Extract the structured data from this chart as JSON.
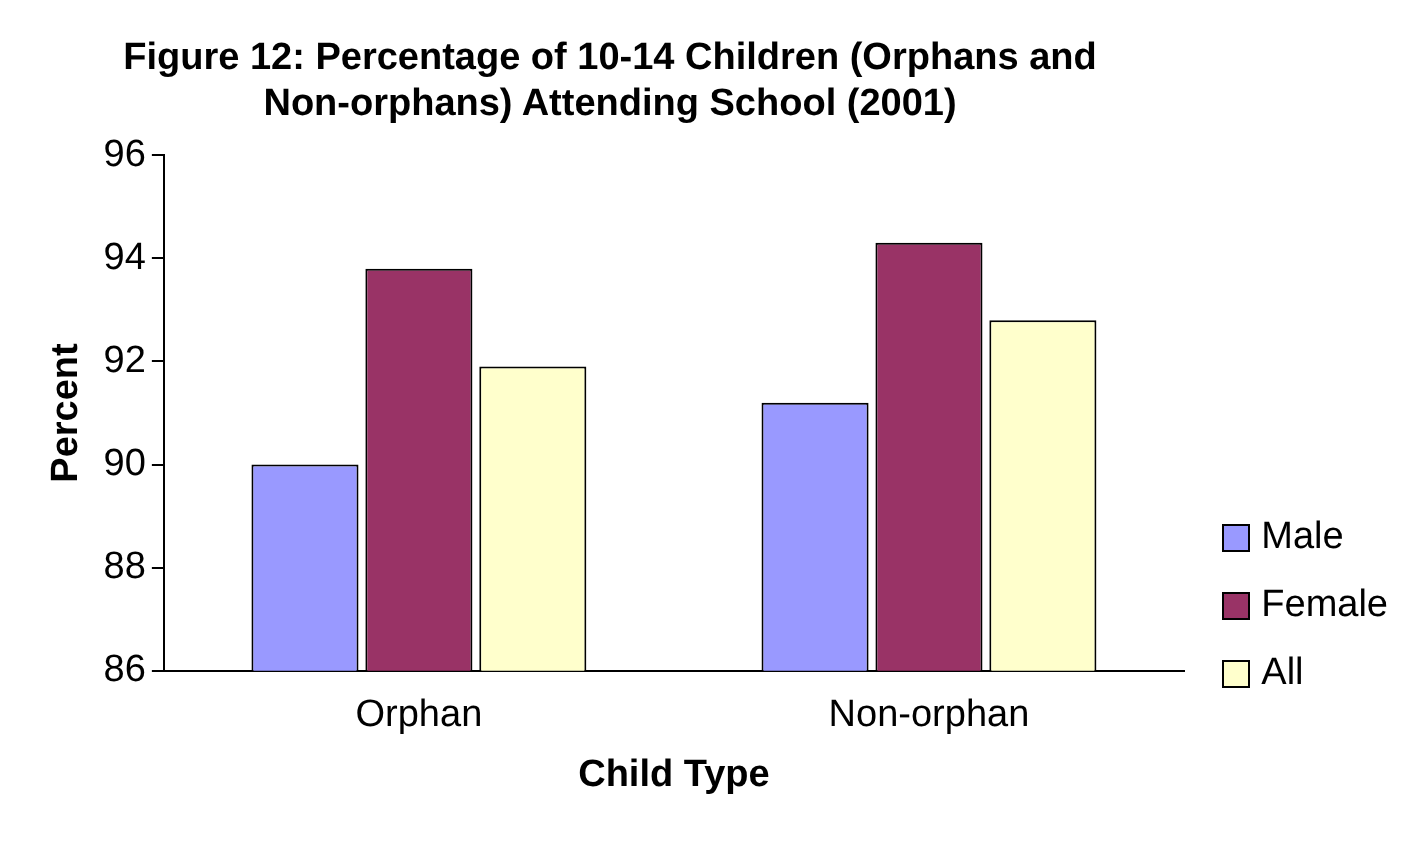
{
  "chart_data": {
    "type": "bar",
    "title": "Figure 12: Percentage of 10-14 Children (Orphans and Non-orphans) Attending School (2001)",
    "xlabel": "Child Type",
    "ylabel": "Percent",
    "categories": [
      "Orphan",
      "Non-orphan"
    ],
    "series": [
      {
        "name": "Male",
        "color": "#9999ff",
        "values": [
          90.0,
          91.2
        ]
      },
      {
        "name": "Female",
        "color": "#993366",
        "values": [
          93.8,
          94.3
        ]
      },
      {
        "name": "All",
        "color": "#ffffcc",
        "values": [
          91.9,
          92.8
        ]
      }
    ],
    "ylim": [
      86,
      96
    ],
    "yticks": [
      86,
      88,
      90,
      92,
      94,
      96
    ],
    "grid": false,
    "legend": "right"
  }
}
